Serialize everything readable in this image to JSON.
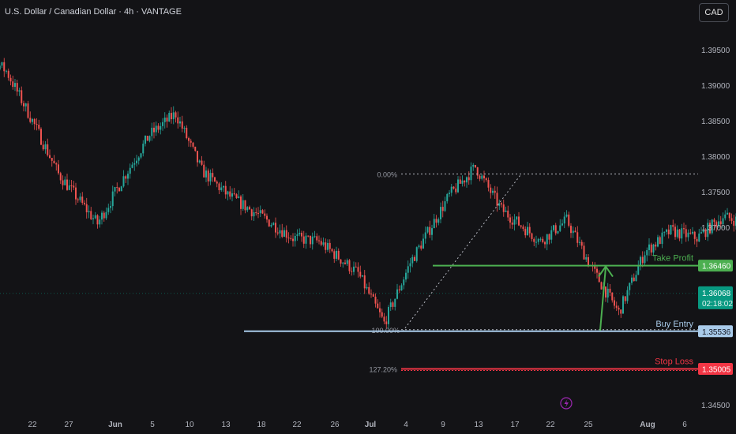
{
  "header": {
    "title": "U.S. Dollar / Canadian Dollar · 4h · VANTAGE",
    "currency_button": "CAD"
  },
  "colors": {
    "background": "#131316",
    "bull": "#26a69a",
    "bear": "#ef5350",
    "take_profit": "#4caf50",
    "buy_entry": "#a9cbea",
    "stop_loss": "#f23645",
    "fib_line": "#b2b5be",
    "price_badge": "#089981"
  },
  "chart_data": {
    "type": "candlestick",
    "instrument": "U.S. Dollar / Canadian Dollar",
    "timeframe": "4h",
    "y_axis": {
      "ticks": [
        1.395,
        1.39,
        1.385,
        1.38,
        1.375,
        1.37,
        1.345
      ],
      "tick_labels": [
        "1.39500",
        "1.39000",
        "1.38500",
        "1.38000",
        "1.37500",
        "1.37000",
        "1.34500"
      ]
    },
    "x_axis": {
      "tick_labels": [
        "22",
        "27",
        "Jun",
        "5",
        "10",
        "13",
        "18",
        "22",
        "26",
        "Jul",
        "4",
        "9",
        "13",
        "17",
        "22",
        "25",
        "Aug",
        "6"
      ]
    },
    "price_path": [
      [
        "2024-05-17",
        1.3965
      ],
      [
        "2024-05-20",
        1.392
      ],
      [
        "2024-05-22",
        1.385
      ],
      [
        "2024-05-24",
        1.3775
      ],
      [
        "2024-05-27",
        1.3705
      ],
      [
        "2024-05-29",
        1.377
      ],
      [
        "2024-05-31",
        1.383
      ],
      [
        "2024-06-02",
        1.386
      ],
      [
        "2024-06-04",
        1.378
      ],
      [
        "2024-06-06",
        1.3745
      ],
      [
        "2024-06-09",
        1.371
      ],
      [
        "2024-06-11",
        1.3685
      ],
      [
        "2024-06-13",
        1.368
      ],
      [
        "2024-06-16",
        1.3635
      ],
      [
        "2024-06-18",
        1.3565
      ],
      [
        "2024-06-20",
        1.365
      ],
      [
        "2024-06-23",
        1.3745
      ],
      [
        "2024-06-25",
        1.3785
      ],
      [
        "2024-06-27",
        1.3725
      ],
      [
        "2024-06-30",
        1.368
      ],
      [
        "2024-07-02",
        1.371
      ],
      [
        "2024-07-04",
        1.364
      ],
      [
        "2024-07-06",
        1.358
      ],
      [
        "2024-07-08",
        1.3665
      ],
      [
        "2024-07-10",
        1.3695
      ],
      [
        "2024-07-12",
        1.3685
      ],
      [
        "2024-07-14",
        1.3715
      ],
      [
        "2024-07-16",
        1.3705
      ],
      [
        "2024-07-18",
        1.3765
      ],
      [
        "2024-07-20",
        1.3745
      ],
      [
        "2024-07-22",
        1.3705
      ],
      [
        "2024-07-24",
        1.369
      ],
      [
        "2024-07-25",
        1.3605
      ]
    ],
    "current_price": "1.36068",
    "countdown": "02:18:02",
    "fibonacci": [
      {
        "label": "0.00%",
        "price": 1.3775
      },
      {
        "label": "100.00%",
        "price": 1.35536
      },
      {
        "label": "127.20%",
        "price": 1.35005
      }
    ],
    "levels": [
      {
        "name": "Take Profit",
        "price": "1.36460",
        "color": "#4caf50"
      },
      {
        "name": "Buy Entry",
        "price": "1.35536",
        "color": "#a9cbea"
      },
      {
        "name": "Stop Loss",
        "price": "1.35005",
        "color": "#f23645"
      }
    ]
  }
}
